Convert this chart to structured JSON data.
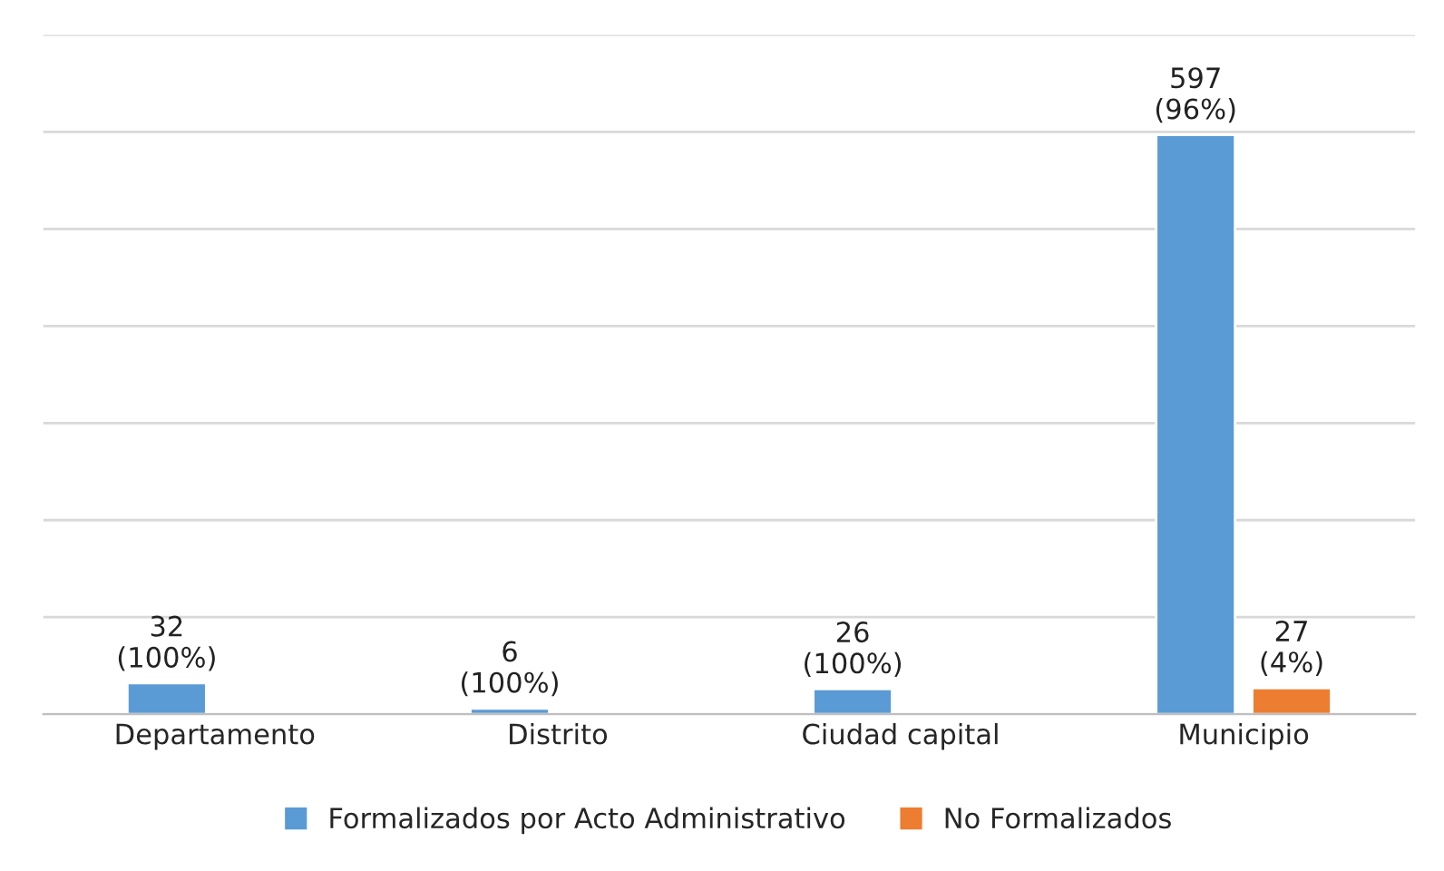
{
  "chart_data": {
    "type": "bar",
    "categories": [
      "Departamento",
      "Distrito",
      "Ciudad capital",
      "Municipio"
    ],
    "series": [
      {
        "name": "Formalizados por Acto Administrativo",
        "color": "#5b9bd5",
        "values": [
          32,
          6,
          26,
          597
        ],
        "value_labels": [
          "32\n(100%)",
          "6\n(100%)",
          "26\n(100%)",
          "597\n(96%)"
        ]
      },
      {
        "name": "No Formalizados",
        "color": "#ed7d31",
        "values": [
          null,
          null,
          null,
          27
        ],
        "value_labels": [
          null,
          null,
          null,
          "27\n(4%)"
        ]
      }
    ],
    "ylim": [
      0,
      700
    ],
    "yticks": [
      {
        "value": 0,
        "label": null
      },
      {
        "value": 100,
        "label": null
      },
      {
        "value": 200,
        "label": null
      },
      {
        "value": 300,
        "label": null
      },
      {
        "value": 400,
        "label": null
      },
      {
        "value": 500,
        "label": null
      },
      {
        "value": 600,
        "label": null
      },
      {
        "value": 700,
        "label": null
      }
    ],
    "grid": "y",
    "legend": "bottom",
    "tick_labels": "x"
  }
}
